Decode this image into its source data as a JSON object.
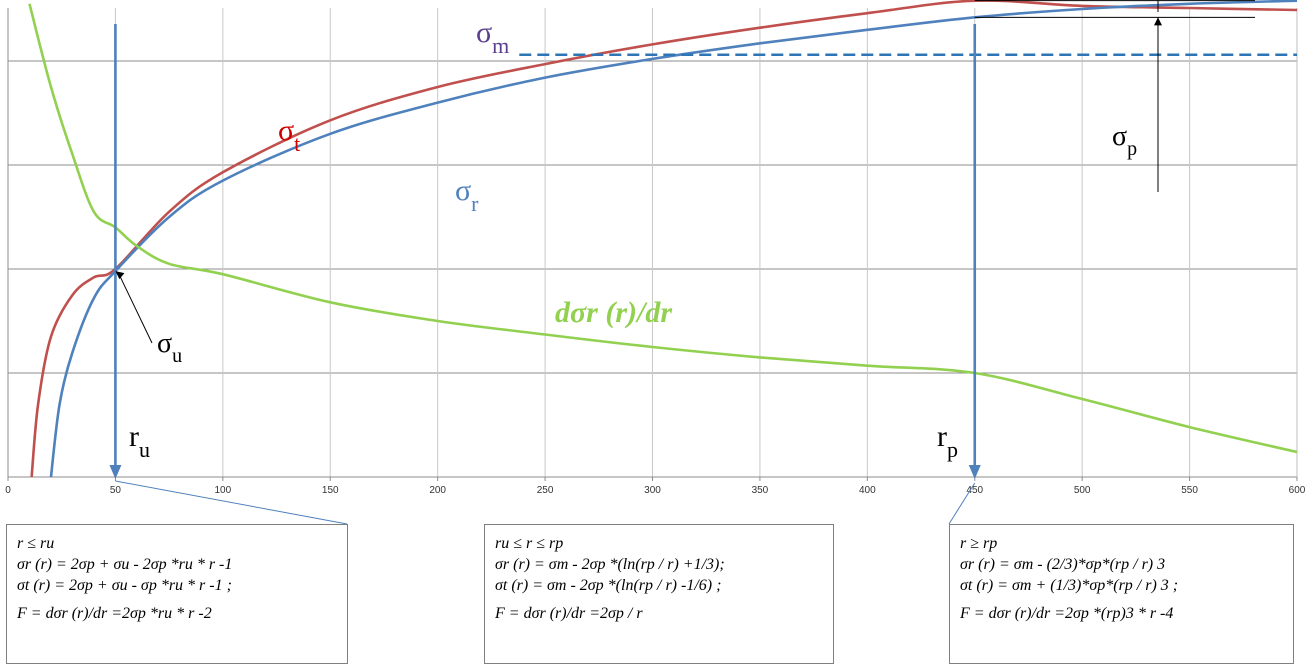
{
  "chart_data": {
    "type": "line",
    "xlim": [
      0,
      600
    ],
    "x_ticks": [
      "0",
      "50",
      "100",
      "150",
      "200",
      "250",
      "300",
      "350",
      "400",
      "450",
      "500",
      "550",
      "600"
    ],
    "grid": true,
    "series": [
      {
        "name": "σ t",
        "color": "#c0504d",
        "x": [
          11,
          14,
          20,
          30,
          40,
          50,
          75,
          100,
          150,
          200,
          250,
          300,
          350,
          400,
          450,
          500,
          550,
          600
        ],
        "y": [
          0.0,
          0.7,
          1.35,
          1.75,
          1.92,
          2.0,
          2.55,
          2.93,
          3.43,
          3.75,
          3.97,
          4.16,
          4.32,
          4.46,
          4.58,
          4.53,
          4.51,
          4.49
        ]
      },
      {
        "name": "σ r",
        "color": "#4f81bd",
        "x": [
          20,
          24,
          30,
          40,
          50,
          75,
          100,
          150,
          200,
          250,
          300,
          350,
          400,
          450,
          500,
          550,
          600
        ],
        "y": [
          0.0,
          0.7,
          1.2,
          1.72,
          1.98,
          2.5,
          2.85,
          3.3,
          3.6,
          3.84,
          4.02,
          4.17,
          4.3,
          4.42,
          4.5,
          4.55,
          4.58
        ]
      },
      {
        "name": "dσr (r)/dr",
        "color": "#92d050",
        "x": [
          10,
          20,
          30,
          40,
          50,
          60,
          75,
          100,
          150,
          200,
          250,
          300,
          350,
          400,
          450,
          500,
          550,
          600
        ],
        "y": [
          4.55,
          3.75,
          3.1,
          2.55,
          2.4,
          2.22,
          2.05,
          1.95,
          1.68,
          1.5,
          1.37,
          1.25,
          1.15,
          1.07,
          1.0,
          0.75,
          0.48,
          0.24
        ]
      }
    ],
    "sigma_m_level": 4.06,
    "labels": {
      "sigma_m": "σ m",
      "sigma_t": "σ t",
      "sigma_r": "σ r",
      "derivative": "dσr (r)/dr",
      "sigma_p": "σp",
      "sigma_u": "σu",
      "r_u": "ru",
      "r_p": "rp"
    },
    "markers": {
      "r_u": 50,
      "r_p": 450
    }
  },
  "boxes": {
    "left": [
      "r  ≤  ru",
      "σr (r) = 2σp + σu - 2σp *ru * r -1",
      "σt (r) = 2σp + σu - σp *ru * r -1 ;",
      "F = dσr (r)/dr =2σp *ru * r -2"
    ],
    "middle": [
      "ru ≤ r  ≤ rp",
      "σr (r) = σm - 2σp *(ln(rp / r) +1/3);",
      "σt (r) = σm - 2σp *(ln(rp / r) -1/6) ;",
      "F = dσr (r)/dr =2σp / r"
    ],
    "right": [
      "r  ≥  rp",
      "σr (r) = σm - (2/3)*σp*(rp / r) 3",
      "σt (r) = σm + (1/3)*σp*(rp / r) 3 ;",
      "F = dσr (r)/dr =2σp *(rp)3 * r -4"
    ]
  }
}
